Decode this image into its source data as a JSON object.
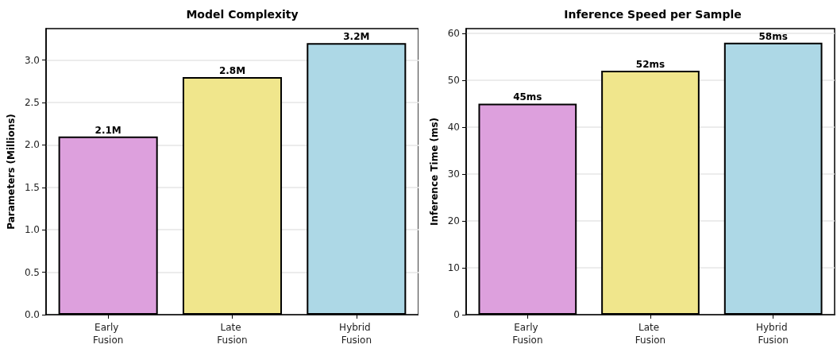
{
  "chart_data": [
    {
      "type": "bar",
      "title": "Model Complexity",
      "ylabel": "Parameters (Millions)",
      "categories": [
        "Early Fusion",
        "Late Fusion",
        "Hybrid Fusion"
      ],
      "values": [
        2.1,
        2.8,
        3.2
      ],
      "colors": [
        "#dda0dd",
        "#f0e68c",
        "#add8e6"
      ],
      "value_labels": [
        "2.1M",
        "2.8M",
        "3.2M"
      ],
      "ylim": [
        0,
        3.37
      ],
      "yticks": [
        {
          "value": 0,
          "label": "0.0"
        },
        0.5,
        {
          "value": 1,
          "label": "1.0"
        },
        1.5,
        {
          "value": 2,
          "label": "2.0"
        },
        2.5,
        {
          "value": 3,
          "label": "3.0"
        }
      ],
      "grid": "y"
    },
    {
      "type": "bar",
      "title": "Inference Speed per Sample",
      "ylabel": "Inference Time (ms)",
      "categories": [
        "Early Fusion",
        "Late Fusion",
        "Hybrid Fusion"
      ],
      "values": [
        45,
        52,
        58
      ],
      "colors": [
        "#dda0dd",
        "#f0e68c",
        "#add8e6"
      ],
      "value_labels": [
        "45ms",
        "52ms",
        "58ms"
      ],
      "ylim": [
        0,
        61
      ],
      "yticks": [
        0,
        10,
        20,
        30,
        40,
        50,
        60
      ],
      "grid": "y"
    }
  ]
}
